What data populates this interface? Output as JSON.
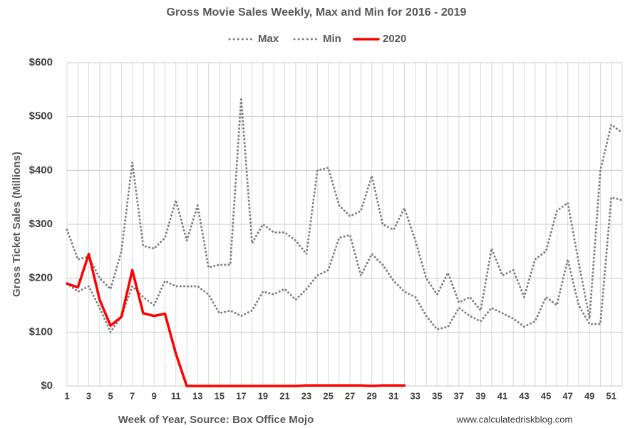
{
  "chart_data": {
    "type": "line",
    "title": "Gross Movie Sales Weekly, Max and Min for 2016 - 2019",
    "x_label": "Week of Year, Source: Box Office Mojo",
    "y_label": "Gross Ticket Sales (Millions)",
    "source": "www.calculatedriskblog.com",
    "categories": [
      1,
      null,
      3,
      null,
      5,
      null,
      7,
      null,
      9,
      null,
      11,
      null,
      13,
      null,
      15,
      null,
      17,
      null,
      19,
      null,
      21,
      null,
      23,
      null,
      25,
      null,
      27,
      null,
      29,
      null,
      31,
      null,
      33,
      null,
      35,
      null,
      37,
      null,
      39,
      null,
      41,
      null,
      43,
      null,
      45,
      null,
      47,
      null,
      49,
      null,
      51,
      null
    ],
    "series": [
      {
        "name": "Max",
        "color": "#808080",
        "style": "dotted",
        "values": [
          290,
          235,
          240,
          200,
          180,
          250,
          415,
          260,
          255,
          275,
          345,
          270,
          335,
          220,
          225,
          225,
          535,
          265,
          300,
          285,
          285,
          270,
          245,
          400,
          405,
          335,
          315,
          325,
          390,
          300,
          290,
          330,
          270,
          200,
          170,
          210,
          155,
          165,
          140,
          255,
          205,
          215,
          165,
          235,
          250,
          325,
          340,
          230,
          125,
          400,
          485,
          470
        ]
      },
      {
        "name": "Min",
        "color": "#808080",
        "style": "dotted",
        "values": [
          190,
          175,
          185,
          145,
          100,
          130,
          185,
          165,
          150,
          195,
          185,
          185,
          185,
          170,
          135,
          140,
          130,
          140,
          175,
          170,
          180,
          160,
          180,
          205,
          215,
          275,
          280,
          205,
          245,
          225,
          195,
          175,
          165,
          130,
          105,
          110,
          145,
          130,
          120,
          145,
          135,
          125,
          110,
          120,
          165,
          150,
          235,
          150,
          115,
          115,
          350,
          345
        ]
      },
      {
        "name": "2020",
        "color": "#ff0000",
        "style": "solid",
        "values": [
          190,
          183,
          245,
          160,
          112,
          128,
          215,
          135,
          130,
          134,
          60,
          0,
          0,
          0,
          0,
          0,
          0,
          0,
          0,
          0,
          0,
          0,
          1,
          1,
          1,
          1,
          1,
          1,
          0,
          1,
          1,
          1,
          null,
          null,
          null,
          null,
          null,
          null,
          null,
          null,
          null,
          null,
          null,
          null,
          null,
          null,
          null,
          null,
          null,
          null,
          null,
          null
        ]
      }
    ],
    "ylim": [
      0,
      600
    ],
    "yticks": [
      {
        "value": 0,
        "label": "$0"
      },
      {
        "value": 100,
        "label": "$100"
      },
      {
        "value": 200,
        "label": "$200"
      },
      {
        "value": 300,
        "label": "$300"
      },
      {
        "value": 400,
        "label": "$400"
      },
      {
        "value": 500,
        "label": "$500"
      },
      {
        "value": 600,
        "label": "$600"
      }
    ],
    "grid": true,
    "legend": "top"
  }
}
